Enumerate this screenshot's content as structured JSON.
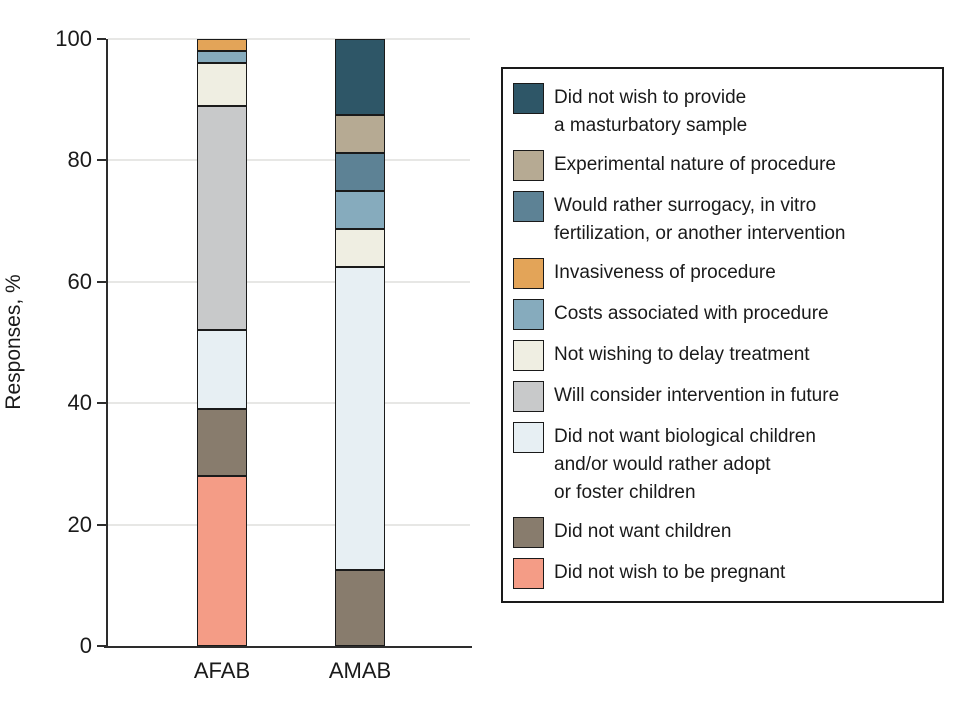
{
  "figure": {
    "background_color": "#ffffff",
    "axis_color": "#2d2d2d",
    "grid_color": "#e7e7e5",
    "segment_border_color": "#1a1a1a"
  },
  "chart_data": {
    "type": "bar",
    "stacked": true,
    "ylabel": "Responses, %",
    "ylim": [
      0,
      100
    ],
    "yticks": [
      0,
      20,
      40,
      60,
      80,
      100
    ],
    "grid": true,
    "legend_position": "right",
    "stack_order": "bars stack bottom-to-top in reverse legend order (legend top = top of bar)",
    "categories": [
      "AFAB",
      "AMAB"
    ],
    "series": [
      {
        "name": "Did not wish to provide a masturbatory sample",
        "label_lines": "Did not wish to provide\na masturbatory sample",
        "color": "#2e5667",
        "values": [
          0,
          12.5
        ]
      },
      {
        "name": "Experimental nature of procedure",
        "label_lines": "Experimental nature of procedure",
        "color": "#b6aa93",
        "values": [
          0,
          6.25
        ]
      },
      {
        "name": "Would rather surrogacy, in vitro fertilization, or another intervention",
        "label_lines": "Would rather surrogacy, in vitro\nfertilization, or another intervention",
        "color": "#5d8295",
        "values": [
          0,
          6.25
        ]
      },
      {
        "name": "Invasiveness of procedure",
        "label_lines": "Invasiveness of procedure",
        "color": "#e3a458",
        "values": [
          2,
          0
        ]
      },
      {
        "name": "Costs associated with procedure",
        "label_lines": "Costs associated with procedure",
        "color": "#86abbd",
        "values": [
          2,
          6.25
        ]
      },
      {
        "name": "Not wishing to delay treatment",
        "label_lines": "Not wishing to delay treatment",
        "color": "#efeee2",
        "values": [
          7,
          6.25
        ]
      },
      {
        "name": "Will consider intervention in future",
        "label_lines": "Will consider intervention in future",
        "color": "#c8c9ca",
        "values": [
          37,
          0
        ]
      },
      {
        "name": "Did not want biological children and/or would rather adopt or foster children",
        "label_lines": "Did not want biological children\nand/or would rather adopt\nor foster children",
        "color": "#e7eff3",
        "values": [
          13,
          50
        ]
      },
      {
        "name": "Did not want children",
        "label_lines": "Did not want children",
        "color": "#887c6d",
        "values": [
          11,
          12.5
        ]
      },
      {
        "name": "Did not wish to be pregnant",
        "label_lines": "Did not wish to be pregnant",
        "color": "#f49c86",
        "values": [
          28,
          0
        ]
      }
    ]
  }
}
